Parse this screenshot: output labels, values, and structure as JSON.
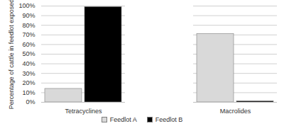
{
  "chart_data": {
    "type": "bar",
    "categories": [
      "Tetracyclines",
      "Macrolides"
    ],
    "series": [
      {
        "name": "Feedlot A",
        "color": "#d9d9d9",
        "values": [
          14,
          71
        ]
      },
      {
        "name": "Feedlot B",
        "color": "#000000",
        "values": [
          99,
          1
        ]
      }
    ],
    "y_label": "Percentage of cattle in feedlot exposed",
    "ylim": [
      0,
      100
    ],
    "yticks": [
      {
        "value": 0,
        "label": "0%"
      },
      {
        "value": 10,
        "label": "10%"
      },
      {
        "value": 20,
        "label": "20%"
      },
      {
        "value": 30,
        "label": "30%"
      },
      {
        "value": 40,
        "label": "40%"
      },
      {
        "value": 50,
        "label": "50%"
      },
      {
        "value": 60,
        "label": "60%"
      },
      {
        "value": 70,
        "label": "70%"
      },
      {
        "value": 80,
        "label": "80%"
      },
      {
        "value": 90,
        "label": "90%"
      },
      {
        "value": 100,
        "label": "100%"
      }
    ],
    "grid": true,
    "legend": "bottom"
  }
}
